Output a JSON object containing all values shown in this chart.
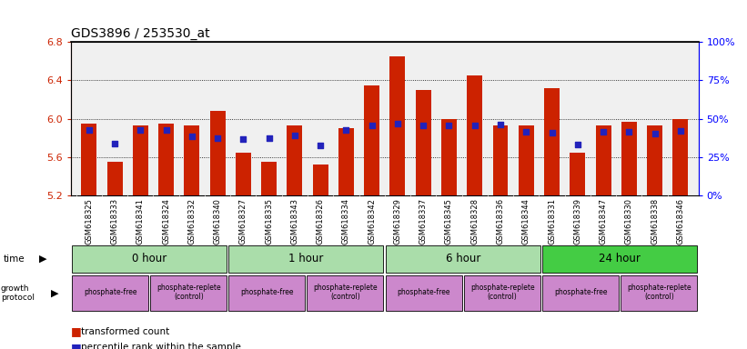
{
  "title": "GDS3896 / 253530_at",
  "samples": [
    "GSM618325",
    "GSM618333",
    "GSM618341",
    "GSM618324",
    "GSM618332",
    "GSM618340",
    "GSM618327",
    "GSM618335",
    "GSM618343",
    "GSM618326",
    "GSM618334",
    "GSM618342",
    "GSM618329",
    "GSM618337",
    "GSM618345",
    "GSM618328",
    "GSM618336",
    "GSM618344",
    "GSM618331",
    "GSM618339",
    "GSM618347",
    "GSM618330",
    "GSM618338",
    "GSM618346"
  ],
  "bar_values": [
    5.95,
    5.55,
    5.93,
    5.95,
    5.93,
    6.08,
    5.65,
    5.55,
    5.93,
    5.52,
    5.9,
    6.35,
    6.65,
    6.3,
    6.0,
    6.45,
    5.93,
    5.93,
    6.32,
    5.65,
    5.93,
    5.97,
    5.93,
    6.0
  ],
  "percentile_values": [
    5.88,
    5.74,
    5.88,
    5.88,
    5.82,
    5.8,
    5.79,
    5.8,
    5.83,
    5.72,
    5.88,
    5.93,
    5.95,
    5.93,
    5.93,
    5.93,
    5.94,
    5.86,
    5.85,
    5.73,
    5.86,
    5.86,
    5.84,
    5.87
  ],
  "ylim": [
    5.2,
    6.8
  ],
  "yticks": [
    5.2,
    5.6,
    6.0,
    6.4,
    6.8
  ],
  "right_yticks": [
    0,
    25,
    50,
    75,
    100
  ],
  "right_ytick_labels": [
    "0%",
    "25%",
    "50%",
    "75%",
    "100%"
  ],
  "bar_color": "#CC2200",
  "percentile_color": "#2222BB",
  "bg_color": "#F0F0F0",
  "plot_bg": "#FFFFFF",
  "time_colors": [
    "#AADDAA",
    "#AADDAA",
    "#AADDAA",
    "#44CC44"
  ],
  "time_labels": [
    "0 hour",
    "1 hour",
    "6 hour",
    "24 hour"
  ],
  "time_boundaries": [
    0,
    6,
    12,
    18,
    24
  ],
  "growth_boundaries": [
    0,
    3,
    6,
    9,
    12,
    15,
    18,
    21,
    24
  ],
  "growth_labels": [
    "phosphate-free",
    "phosphate-replete\n(control)",
    "phosphate-free",
    "phosphate-replete\n(control)",
    "phosphate-free",
    "phosphate-replete\n(control)",
    "phosphate-free",
    "phosphate-replete\n(control)"
  ],
  "growth_color": "#CC88CC"
}
